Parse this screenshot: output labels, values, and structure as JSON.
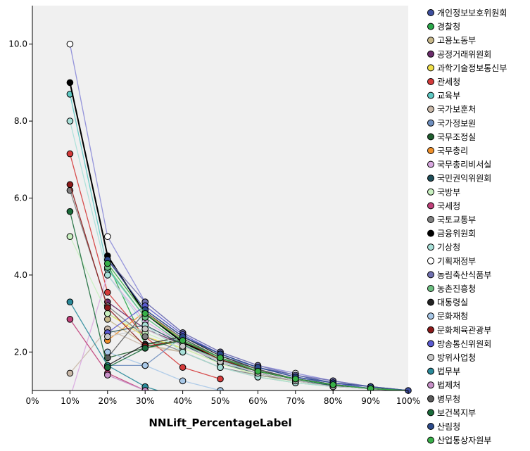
{
  "chart_data": {
    "type": "line",
    "xlabel": "NNLift_PercentageLabel",
    "ylabel": "",
    "x": [
      "0%",
      "10%",
      "20%",
      "30%",
      "40%",
      "50%",
      "60%",
      "70%",
      "80%",
      "90%",
      "100%"
    ],
    "y_ticks": [
      "2.0",
      "4.0",
      "6.0",
      "8.0",
      "10.0"
    ],
    "ylim": [
      1.0,
      11.0
    ],
    "grid": false,
    "legend_position": "right",
    "series": [
      {
        "name": "개인정보보호위원회",
        "color": "#3e4f9e",
        "values": [
          null,
          null,
          null,
          3.1,
          2.4,
          1.95,
          1.6,
          1.4,
          1.2,
          1.1,
          1.0
        ]
      },
      {
        "name": "경찰청",
        "color": "#2aa84a",
        "values": [
          null,
          null,
          4.3,
          2.2,
          2.3,
          1.8,
          1.5,
          1.3,
          1.15,
          1.05,
          1.0
        ]
      },
      {
        "name": "고용노동부",
        "color": "#c8b88a",
        "values": [
          null,
          null,
          2.85,
          2.2,
          2.0,
          1.6,
          1.35,
          1.2,
          1.1,
          1.05,
          1.0
        ]
      },
      {
        "name": "공정거래위원회",
        "color": "#6b2c6b",
        "values": [
          null,
          null,
          3.3,
          2.6,
          2.2,
          1.75,
          1.45,
          1.25,
          1.12,
          1.05,
          1.0
        ]
      },
      {
        "name": "과학기술정보통신부",
        "color": "#f0e04a",
        "values": [
          null,
          null,
          3.0,
          2.4,
          2.1,
          1.7,
          1.4,
          1.25,
          1.1,
          1.05,
          1.0
        ]
      },
      {
        "name": "관세청",
        "color": "#d43a3a",
        "values": [
          null,
          7.15,
          3.55,
          2.4,
          1.6,
          1.3,
          null,
          null,
          null,
          null,
          1.0
        ]
      },
      {
        "name": "교육부",
        "color": "#5ec9c4",
        "values": [
          null,
          8.7,
          4.15,
          2.9,
          2.2,
          1.75,
          1.5,
          1.3,
          1.12,
          1.05,
          1.0
        ]
      },
      {
        "name": "국가보훈처",
        "color": "#c9b8a8",
        "values": [
          null,
          1.45,
          2.6,
          2.15,
          2.0,
          1.6,
          1.35,
          1.2,
          1.1,
          1.05,
          1.0
        ]
      },
      {
        "name": "국가정보원",
        "color": "#6f8fbf",
        "values": [
          null,
          null,
          1.65,
          1.65,
          2.4,
          1.9,
          1.6,
          1.35,
          1.15,
          1.05,
          1.0
        ]
      },
      {
        "name": "국무조정실",
        "color": "#1f5e2e",
        "values": [
          null,
          null,
          1.85,
          2.1,
          2.35,
          1.85,
          1.5,
          1.3,
          1.15,
          1.05,
          1.0
        ]
      },
      {
        "name": "국무총리",
        "color": "#f0902a",
        "values": [
          null,
          null,
          2.3,
          3.05,
          2.3,
          1.8,
          1.5,
          1.3,
          1.15,
          1.05,
          1.0
        ]
      },
      {
        "name": "국무총리비서실",
        "color": "#d9a8e0",
        "values": [
          null,
          0.8,
          4.0,
          2.8,
          2.2,
          1.75,
          1.45,
          1.25,
          1.1,
          1.05,
          1.0
        ]
      },
      {
        "name": "국민권익위원회",
        "color": "#1f4f5a",
        "values": [
          null,
          null,
          2.5,
          2.7,
          2.2,
          1.7,
          1.45,
          1.25,
          1.12,
          1.05,
          1.0
        ]
      },
      {
        "name": "국방부",
        "color": "#c8f0c0",
        "values": [
          null,
          5.0,
          3.0,
          2.5,
          2.1,
          1.7,
          1.4,
          1.2,
          1.1,
          1.05,
          1.0
        ]
      },
      {
        "name": "국세청",
        "color": "#c0407a",
        "values": [
          null,
          2.85,
          1.45,
          1.0,
          0.8,
          null,
          null,
          null,
          null,
          null,
          1.0
        ]
      },
      {
        "name": "국토교통부",
        "color": "#808080",
        "values": [
          null,
          6.2,
          3.2,
          2.4,
          2.0,
          1.6,
          1.4,
          1.25,
          1.1,
          1.05,
          1.0
        ]
      },
      {
        "name": "금융위원회",
        "color": "#000000",
        "values": [
          null,
          9.0,
          4.5,
          3.0,
          2.25,
          1.8,
          1.5,
          1.3,
          1.15,
          1.05,
          1.0
        ]
      },
      {
        "name": "기상청",
        "color": "#a8e0d8",
        "values": [
          null,
          8.0,
          4.0,
          2.7,
          2.0,
          1.6,
          1.35,
          1.2,
          1.1,
          1.05,
          1.0
        ]
      },
      {
        "name": "기획재정부",
        "color": "#ffffff",
        "values": [
          null,
          10.0,
          5.0,
          3.3,
          2.5,
          2.0,
          1.65,
          1.45,
          1.25,
          1.1,
          1.0
        ]
      },
      {
        "name": "농림축산식품부",
        "color": "#7070b0",
        "values": [
          null,
          null,
          4.4,
          3.3,
          2.5,
          2.0,
          1.65,
          1.4,
          1.25,
          1.1,
          1.0
        ]
      },
      {
        "name": "농촌진흥청",
        "color": "#6cc080",
        "values": [
          null,
          null,
          4.2,
          2.9,
          2.2,
          1.8,
          1.5,
          1.3,
          1.15,
          1.05,
          1.0
        ]
      },
      {
        "name": "대통령실",
        "color": "#222222",
        "values": [
          null,
          null,
          1.65,
          2.2,
          2.4,
          1.9,
          1.55,
          1.3,
          1.15,
          1.05,
          1.0
        ]
      },
      {
        "name": "문화재청",
        "color": "#a8c8e8",
        "values": [
          null,
          null,
          2.0,
          1.65,
          1.25,
          1.0,
          null,
          null,
          null,
          null,
          1.0
        ]
      },
      {
        "name": "문화체육관광부",
        "color": "#8b1a1a",
        "values": [
          null,
          6.35,
          3.15,
          2.15,
          2.3,
          1.8,
          1.5,
          1.3,
          1.15,
          1.05,
          1.0
        ]
      },
      {
        "name": "방송통신위원회",
        "color": "#5a5ad0",
        "values": [
          null,
          null,
          2.5,
          3.2,
          2.45,
          1.95,
          1.6,
          1.35,
          1.2,
          1.05,
          1.0
        ]
      },
      {
        "name": "방위사업청",
        "color": "#c8c8c8",
        "values": [
          null,
          null,
          2.4,
          2.6,
          2.15,
          1.75,
          1.45,
          1.25,
          1.1,
          1.05,
          1.0
        ]
      },
      {
        "name": "법무부",
        "color": "#2a8a9a",
        "values": [
          null,
          3.3,
          1.65,
          1.1,
          0.8,
          null,
          null,
          null,
          null,
          null,
          1.0
        ]
      },
      {
        "name": "법제처",
        "color": "#c890c8",
        "values": [
          null,
          null,
          1.4,
          1.0,
          0.8,
          null,
          null,
          null,
          null,
          null,
          1.0
        ]
      },
      {
        "name": "병무청",
        "color": "#5a5a5a",
        "values": [
          null,
          null,
          1.85,
          3.05,
          2.35,
          1.85,
          1.55,
          1.3,
          1.15,
          1.05,
          1.0
        ]
      },
      {
        "name": "보건복지부",
        "color": "#1a6b3a",
        "values": [
          null,
          5.65,
          1.6,
          2.1,
          2.3,
          1.85,
          1.5,
          1.3,
          1.15,
          1.05,
          1.0
        ]
      },
      {
        "name": "산림청",
        "color": "#2c4a8a",
        "values": [
          null,
          null,
          4.4,
          3.1,
          2.4,
          1.95,
          1.6,
          1.35,
          1.2,
          1.1,
          1.0
        ]
      },
      {
        "name": "산업통상자원부",
        "color": "#38b048",
        "values": [
          null,
          null,
          4.3,
          3.0,
          2.3,
          1.85,
          1.5,
          1.3,
          1.15,
          1.05,
          1.0
        ]
      }
    ]
  }
}
